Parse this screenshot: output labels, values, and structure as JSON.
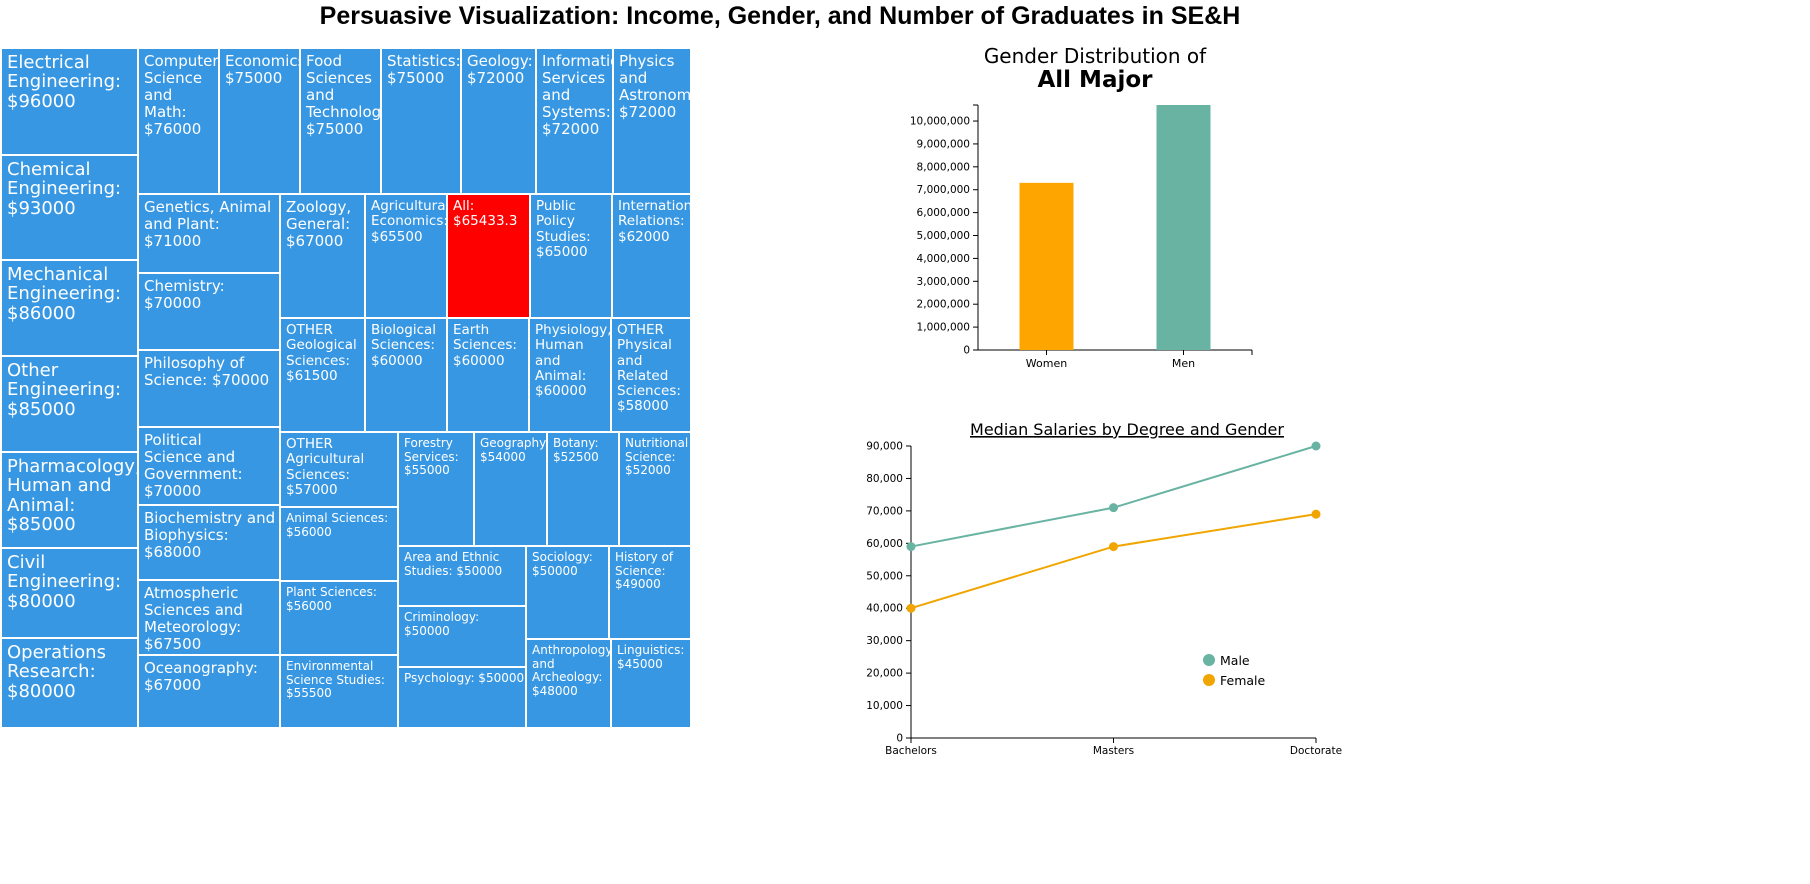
{
  "page": {
    "title": "Persuasive Visualization: Income, Gender, and Number of Graduates in SE&H"
  },
  "colors": {
    "tile": "#3797e3",
    "tile_selected": "#ff0000",
    "women": "#ffa500",
    "men": "#69b3a2",
    "female": "#f0a500",
    "male": "#69b3a2"
  },
  "chart_data": [
    {
      "type": "treemap",
      "tiles": [
        {
          "id": "electrical-engineering",
          "lines": [
            "Electrical",
            "Engineering:",
            "$96000"
          ],
          "value": 96000,
          "size": "xl"
        },
        {
          "id": "chemical-engineering",
          "lines": [
            "Chemical",
            "Engineering:",
            "$93000"
          ],
          "value": 93000,
          "size": "xl"
        },
        {
          "id": "mechanical-engineering",
          "lines": [
            "Mechanical",
            "Engineering:",
            "$86000"
          ],
          "value": 86000,
          "size": "xl"
        },
        {
          "id": "other-engineering",
          "lines": [
            "Other",
            "Engineering:",
            "$85000"
          ],
          "value": 85000,
          "size": "xl"
        },
        {
          "id": "pharmacology",
          "lines": [
            "Pharmacology,",
            "Human and",
            "Animal: $85000"
          ],
          "value": 85000,
          "size": "xl"
        },
        {
          "id": "civil-engineering",
          "lines": [
            "Civil",
            "Engineering:",
            "$80000"
          ],
          "value": 80000,
          "size": "xl"
        },
        {
          "id": "operations-research",
          "lines": [
            "Operations",
            "Research:",
            "$80000"
          ],
          "value": 80000,
          "size": "xl"
        },
        {
          "id": "computer-science-math",
          "lines": [
            "Computer",
            "Science",
            "and Math:",
            "$76000"
          ],
          "value": 76000,
          "size": "lg"
        },
        {
          "id": "economics",
          "lines": [
            "Economics:",
            "$75000"
          ],
          "value": 75000,
          "size": "lg"
        },
        {
          "id": "food-sciences",
          "lines": [
            "Food",
            "Sciences",
            "and",
            "Technology",
            "$75000"
          ],
          "value": 75000,
          "size": "lg"
        },
        {
          "id": "statistics",
          "lines": [
            "Statistics:",
            "$75000"
          ],
          "value": 75000,
          "size": "lg"
        },
        {
          "id": "geology",
          "lines": [
            "Geology:",
            "$72000"
          ],
          "value": 72000,
          "size": "lg"
        },
        {
          "id": "information-services",
          "lines": [
            "Information",
            "Services",
            "and",
            "Systems:",
            "$72000"
          ],
          "value": 72000,
          "size": "lg"
        },
        {
          "id": "physics-astronomy",
          "lines": [
            "Physics",
            "and",
            "Astronomy:",
            "$72000"
          ],
          "value": 72000,
          "size": "lg"
        },
        {
          "id": "genetics",
          "lines": [
            "Genetics, Animal",
            "and Plant: $71000"
          ],
          "value": 71000,
          "size": "lg"
        },
        {
          "id": "chemistry",
          "lines": [
            "Chemistry:",
            "$70000"
          ],
          "value": 70000,
          "size": "lg"
        },
        {
          "id": "philosophy-of-science",
          "lines": [
            "Philosophy of",
            "Science: $70000"
          ],
          "value": 70000,
          "size": "lg"
        },
        {
          "id": "political-science",
          "lines": [
            "Political",
            "Science and",
            "Government:",
            "$70000"
          ],
          "value": 70000,
          "size": "lg"
        },
        {
          "id": "biochemistry",
          "lines": [
            "Biochemistry and",
            "Biophysics:",
            "$68000"
          ],
          "value": 68000,
          "size": "lg"
        },
        {
          "id": "atmospheric-sciences",
          "lines": [
            "Atmospheric",
            "Sciences and",
            "Meteorology:",
            "$67500"
          ],
          "value": 67500,
          "size": "lg"
        },
        {
          "id": "oceanography",
          "lines": [
            "Oceanography:",
            "$67000"
          ],
          "value": 67000,
          "size": "lg"
        },
        {
          "id": "zoology",
          "lines": [
            "Zoology,",
            "General:",
            "$67000"
          ],
          "value": 67000,
          "size": "lg"
        },
        {
          "id": "agricultural-economics",
          "lines": [
            "Agricultural",
            "Economics:",
            "$65500"
          ],
          "value": 65500,
          "size": "md"
        },
        {
          "id": "all",
          "lines": [
            "All:",
            "$65433.3"
          ],
          "value": 65433.3,
          "size": "md",
          "selected": true
        },
        {
          "id": "public-policy",
          "lines": [
            "Public",
            "Policy",
            "Studies:",
            "$65000"
          ],
          "value": 65000,
          "size": "md"
        },
        {
          "id": "international-relations",
          "lines": [
            "International",
            "Relations:",
            "$62000"
          ],
          "value": 62000,
          "size": "md"
        },
        {
          "id": "other-geological",
          "lines": [
            "OTHER",
            "Geological",
            "Sciences:",
            "$61500"
          ],
          "value": 61500,
          "size": "md"
        },
        {
          "id": "biological-sciences",
          "lines": [
            "Biological",
            "Sciences:",
            "$60000"
          ],
          "value": 60000,
          "size": "md"
        },
        {
          "id": "earth-sciences",
          "lines": [
            "Earth",
            "Sciences:",
            "$60000"
          ],
          "value": 60000,
          "size": "md"
        },
        {
          "id": "physiology",
          "lines": [
            "Physiology,",
            "Human and",
            "Animal:",
            "$60000"
          ],
          "value": 60000,
          "size": "md"
        },
        {
          "id": "other-physical",
          "lines": [
            "OTHER",
            "Physical",
            "and Related",
            "Sciences:",
            "$58000"
          ],
          "value": 58000,
          "size": "md"
        },
        {
          "id": "other-agricultural",
          "lines": [
            "OTHER",
            "Agricultural",
            "Sciences: $57000"
          ],
          "value": 57000,
          "size": "md"
        },
        {
          "id": "forestry",
          "lines": [
            "Forestry",
            "Services:",
            "$55000"
          ],
          "value": 55000,
          "size": "sm"
        },
        {
          "id": "geography",
          "lines": [
            "Geography:",
            "$54000"
          ],
          "value": 54000,
          "size": "sm"
        },
        {
          "id": "botany",
          "lines": [
            "Botany:",
            "$52500"
          ],
          "value": 52500,
          "size": "sm"
        },
        {
          "id": "nutritional-science",
          "lines": [
            "Nutritional",
            "Science:",
            "$52000"
          ],
          "value": 52000,
          "size": "sm"
        },
        {
          "id": "animal-sciences",
          "lines": [
            "Animal Sciences:",
            "$56000"
          ],
          "value": 56000,
          "size": "sm"
        },
        {
          "id": "plant-sciences",
          "lines": [
            "Plant Sciences:",
            "$56000"
          ],
          "value": 56000,
          "size": "sm"
        },
        {
          "id": "environmental-science",
          "lines": [
            "Environmental",
            "Science Studies:",
            "$55500"
          ],
          "value": 55500,
          "size": "sm"
        },
        {
          "id": "area-ethnic-studies",
          "lines": [
            "Area and Ethnic",
            "Studies: $50000"
          ],
          "value": 50000,
          "size": "sm"
        },
        {
          "id": "criminology",
          "lines": [
            "Criminology: $50000"
          ],
          "value": 50000,
          "size": "sm"
        },
        {
          "id": "psychology",
          "lines": [
            "Psychology: $50000"
          ],
          "value": 50000,
          "size": "sm"
        },
        {
          "id": "sociology",
          "lines": [
            "Sociology:",
            "$50000"
          ],
          "value": 50000,
          "size": "sm"
        },
        {
          "id": "history-of-science",
          "lines": [
            "History of",
            "Science:",
            "$49000"
          ],
          "value": 49000,
          "size": "sm"
        },
        {
          "id": "anthropology",
          "lines": [
            "Anthropology",
            "and",
            "Archeology:",
            "$48000"
          ],
          "value": 48000,
          "size": "sm"
        },
        {
          "id": "linguistics",
          "lines": [
            "Linguistics:",
            "$45000"
          ],
          "value": 45000,
          "size": "sm"
        }
      ]
    },
    {
      "type": "bar",
      "title_line1": "Gender Distribution of",
      "title_line2": "All Major",
      "categories": [
        "Women",
        "Men"
      ],
      "values": [
        7300000,
        10700000
      ],
      "ylim": [
        0,
        10700000
      ],
      "yticks": [
        0,
        1000000,
        2000000,
        3000000,
        4000000,
        5000000,
        6000000,
        7000000,
        8000000,
        9000000,
        10000000
      ],
      "ytick_labels": [
        "0",
        "1,000,000",
        "2,000,000",
        "3,000,000",
        "4,000,000",
        "5,000,000",
        "6,000,000",
        "7,000,000",
        "8,000,000",
        "9,000,000",
        "10,000,000"
      ],
      "bar_colors": [
        "#ffa500",
        "#69b3a2"
      ]
    },
    {
      "type": "line",
      "title": "Median Salaries by Degree and Gender",
      "categories": [
        "Bachelors",
        "Masters",
        "Doctorate"
      ],
      "series": [
        {
          "name": "Male",
          "values": [
            59000,
            71000,
            90000
          ],
          "color": "#69b3a2"
        },
        {
          "name": "Female",
          "values": [
            40000,
            59000,
            69000
          ],
          "color": "#f0a500"
        }
      ],
      "ylim": [
        0,
        90000
      ],
      "yticks": [
        0,
        10000,
        20000,
        30000,
        40000,
        50000,
        60000,
        70000,
        80000,
        90000
      ],
      "ytick_labels": [
        "0",
        "10,000",
        "20,000",
        "30,000",
        "40,000",
        "50,000",
        "60,000",
        "70,000",
        "80,000",
        "90,000"
      ],
      "legend": "bottom-right"
    }
  ]
}
